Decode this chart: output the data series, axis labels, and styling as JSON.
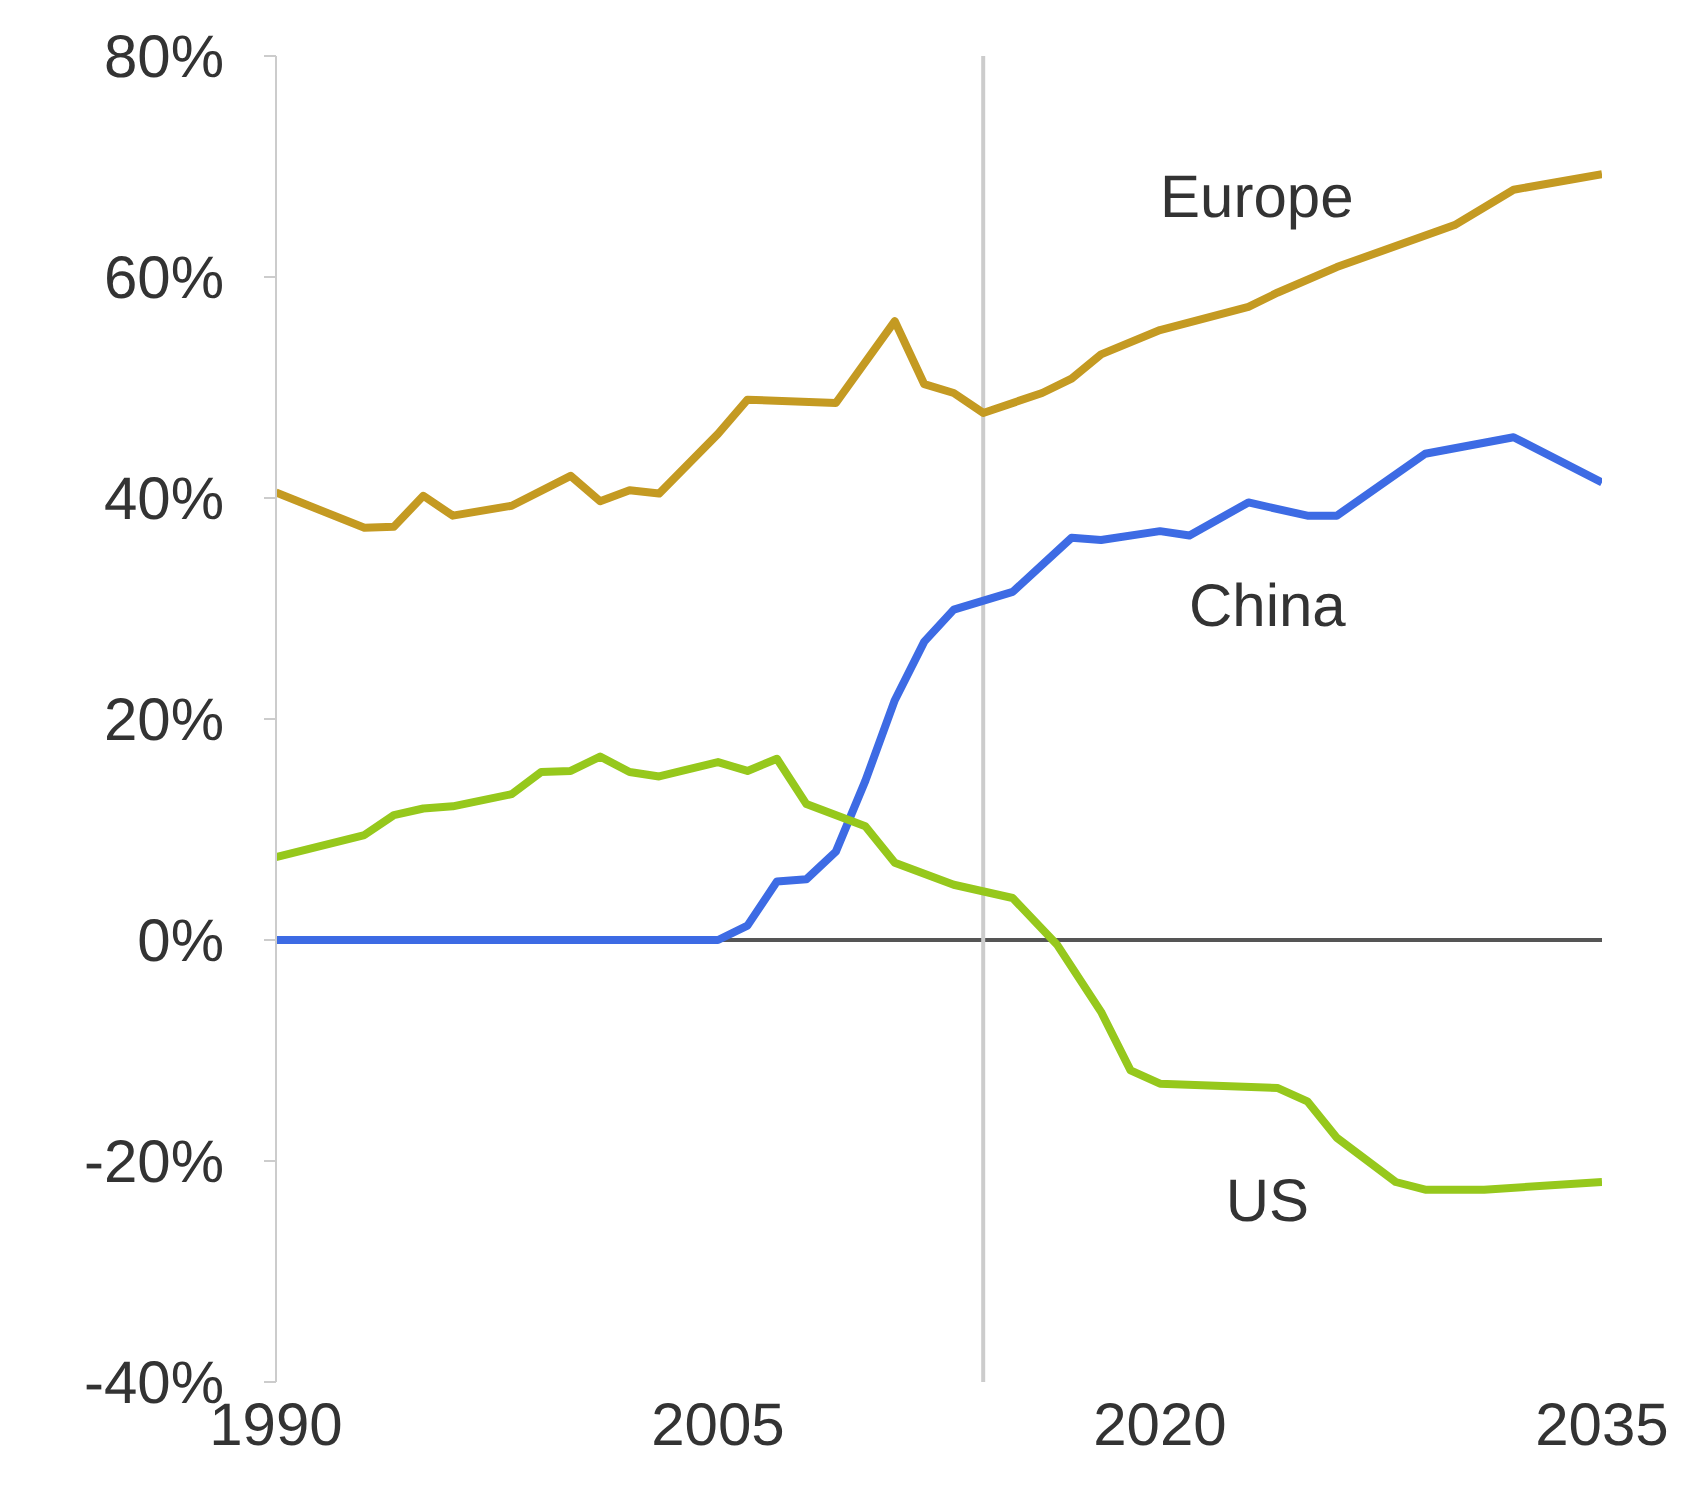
{
  "chart_data": {
    "type": "line",
    "xlim": [
      1990,
      2035
    ],
    "xticks": [
      1990,
      2005,
      2020,
      2035
    ],
    "ylim": [
      -40,
      80
    ],
    "yticks": [
      {
        "value": -40,
        "label": "-40%"
      },
      {
        "value": -20,
        "label": "-20%"
      },
      {
        "value": 0,
        "label": "0%"
      },
      {
        "value": 20,
        "label": "20%"
      },
      {
        "value": 40,
        "label": "40%"
      },
      {
        "value": 60,
        "label": "60%"
      },
      {
        "value": 80,
        "label": "80%"
      }
    ],
    "grid": false,
    "legend": false,
    "marker": "none",
    "line_style": "solid",
    "ref_lines": [
      {
        "axis": "y",
        "value": 0,
        "color": "#555555"
      },
      {
        "axis": "x",
        "value": 2014,
        "color": "#cccccc"
      }
    ],
    "series": [
      {
        "name": "Europe",
        "color": "#c49a22",
        "x": [
          1990,
          1993,
          1994,
          1995,
          1996,
          1998,
          2000,
          2001,
          2002,
          2003,
          2005,
          2006,
          2009,
          2011,
          2012,
          2013,
          2014,
          2016,
          2017,
          2018,
          2020,
          2023,
          2024,
          2026,
          2030,
          2032,
          2035
        ],
        "values": [
          40.5,
          37.3,
          37.4,
          40.2,
          38.4,
          39.3,
          42,
          39.7,
          40.7,
          40.4,
          45.8,
          48.9,
          48.6,
          56,
          50.3,
          49.5,
          47.7,
          49.5,
          50.8,
          53,
          55.2,
          57.3,
          58.6,
          60.9,
          64.7,
          67.9,
          69.3
        ]
      },
      {
        "name": "China",
        "color": "#3d6be4",
        "x": [
          1990,
          2005,
          2006,
          2007,
          2008,
          2009,
          2010,
          2011,
          2012,
          2013,
          2015,
          2017,
          2018,
          2020,
          2021,
          2023,
          2025,
          2026,
          2029,
          2032,
          2035
        ],
        "values": [
          0,
          0,
          1.3,
          5.3,
          5.5,
          8,
          14.4,
          21.7,
          27,
          29.9,
          31.5,
          36.4,
          36.2,
          37,
          36.6,
          39.6,
          38.4,
          38.4,
          44,
          45.5,
          41.4
        ]
      },
      {
        "name": "US",
        "color": "#96c81c",
        "x": [
          1990,
          1993,
          1994,
          1995,
          1996,
          1998,
          1999,
          2000,
          2001,
          2002,
          2003,
          2005,
          2006,
          2007,
          2008,
          2010,
          2011,
          2013,
          2015,
          2016.5,
          2018,
          2019,
          2020,
          2024,
          2025,
          2026,
          2028,
          2029,
          2031,
          2035
        ],
        "values": [
          7.5,
          9.5,
          11.3,
          11.9,
          12.1,
          13.2,
          15.2,
          15.3,
          16.6,
          15.2,
          14.8,
          16.1,
          15.3,
          16.4,
          12.3,
          10.3,
          7,
          5,
          3.8,
          -0.4,
          -6.5,
          -11.8,
          -13,
          -13.4,
          -14.6,
          -17.9,
          -21.9,
          -22.6,
          -22.6,
          -21.9
        ]
      }
    ]
  }
}
